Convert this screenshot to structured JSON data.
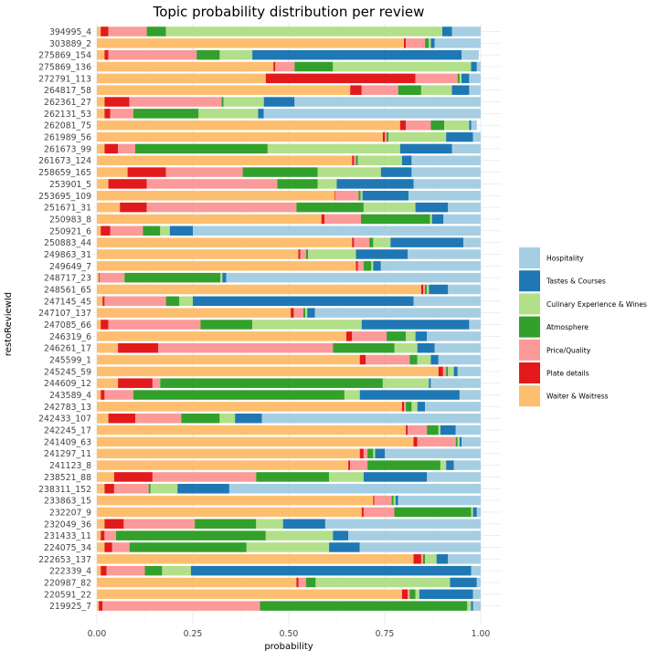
{
  "chart_data": {
    "type": "bar",
    "orientation": "horizontal",
    "stacked": true,
    "title": "Topic probability distribution per review",
    "xlabel": "probability",
    "ylabel": "restoReviewId",
    "xlim": [
      0,
      1
    ],
    "xticks": [
      0,
      0.25,
      0.5,
      0.75,
      1
    ],
    "xtick_labels": [
      "0.00",
      "0.25",
      "0.50",
      "0.75",
      "1.00"
    ],
    "grid": true,
    "legend_position": "right",
    "categories": [
      "394995_4",
      "303889_2",
      "275869_154",
      "275869_136",
      "272791_113",
      "264817_58",
      "262361_27",
      "262131_53",
      "262081_75",
      "261989_56",
      "261673_99",
      "261673_124",
      "258659_165",
      "253901_5",
      "253695_109",
      "251671_31",
      "250983_8",
      "250921_6",
      "250883_44",
      "249863_31",
      "249649_7",
      "248717_23",
      "248561_65",
      "247145_45",
      "247107_137",
      "247085_66",
      "246319_6",
      "246261_17",
      "245599_1",
      "245245_59",
      "244609_12",
      "243589_4",
      "242783_13",
      "242433_107",
      "242245_17",
      "241409_63",
      "241297_11",
      "241123_8",
      "238521_88",
      "238311_152",
      "233863_15",
      "232207_9",
      "232049_36",
      "231433_11",
      "224075_34",
      "222653_137",
      "222339_4",
      "220987_82",
      "220591_22",
      "219925_7"
    ],
    "series": [
      {
        "name": "Waiter & Waitress",
        "color": "#fdbf6f",
        "values": [
          0.01,
          0.8,
          0.02,
          0.46,
          0.44,
          0.66,
          0.02,
          0.02,
          0.79,
          0.745,
          0.02,
          0.665,
          0.08,
          0.03,
          0.62,
          0.06,
          0.585,
          0.01,
          0.665,
          0.525,
          0.675,
          0.005,
          0.845,
          0.015,
          0.505,
          0.01,
          0.65,
          0.055,
          0.685,
          0.89,
          0.055,
          0.01,
          0.795,
          0.03,
          0.805,
          0.825,
          0.685,
          0.655,
          0.045,
          0.02,
          0.72,
          0.69,
          0.02,
          0.01,
          0.02,
          0.825,
          0.01,
          0.52,
          0.795,
          0.005
        ]
      },
      {
        "name": "Plate details",
        "color": "#e31a1c",
        "values": [
          0.02,
          0.005,
          0.01,
          0.005,
          0.39,
          0.03,
          0.065,
          0.015,
          0.015,
          0.005,
          0.035,
          0.005,
          0.1,
          0.1,
          0.002,
          0.07,
          0.008,
          0.025,
          0.005,
          0.005,
          0.005,
          0.002,
          0.005,
          0.005,
          0.008,
          0.02,
          0.015,
          0.105,
          0.015,
          0.012,
          0.09,
          0.01,
          0.005,
          0.07,
          0.005,
          0.01,
          0.01,
          0.005,
          0.1,
          0.025,
          0.003,
          0.005,
          0.05,
          0.01,
          0.02,
          0.02,
          0.015,
          0.005,
          0.015,
          0.01
        ]
      },
      {
        "name": "Price/Quality",
        "color": "#fb9a99",
        "values": [
          0.1,
          0.05,
          0.23,
          0.05,
          0.11,
          0.095,
          0.24,
          0.06,
          0.065,
          0.005,
          0.045,
          0.005,
          0.2,
          0.34,
          0.06,
          0.39,
          0.095,
          0.085,
          0.04,
          0.015,
          0.015,
          0.065,
          0.005,
          0.16,
          0.025,
          0.24,
          0.09,
          0.455,
          0.115,
          0.008,
          0.02,
          0.075,
          0.005,
          0.12,
          0.05,
          0.1,
          0.01,
          0.045,
          0.27,
          0.09,
          0.045,
          0.08,
          0.185,
          0.03,
          0.045,
          0.005,
          0.1,
          0.02,
          0.005,
          0.41
        ]
      },
      {
        "name": "Atmosphere",
        "color": "#33a02c",
        "values": [
          0.05,
          0.01,
          0.06,
          0.1,
          0.005,
          0.06,
          0.005,
          0.17,
          0.035,
          0.005,
          0.345,
          0.005,
          0.195,
          0.105,
          0.005,
          0.175,
          0.18,
          0.045,
          0.01,
          0.005,
          0.02,
          0.25,
          0.005,
          0.035,
          0.005,
          0.135,
          0.05,
          0.16,
          0.02,
          0.005,
          0.58,
          0.55,
          0.015,
          0.1,
          0.03,
          0.005,
          0.015,
          0.19,
          0.19,
          0.005,
          0.005,
          0.2,
          0.16,
          0.39,
          0.305,
          0.005,
          0.045,
          0.025,
          0.015,
          0.54
        ]
      },
      {
        "name": "Culinary Experience & Wines",
        "color": "#b2df8a",
        "values": [
          0.72,
          0.005,
          0.085,
          0.36,
          0.005,
          0.08,
          0.105,
          0.155,
          0.065,
          0.15,
          0.345,
          0.115,
          0.165,
          0.05,
          0.005,
          0.135,
          0.005,
          0.025,
          0.045,
          0.125,
          0.005,
          0.005,
          0.005,
          0.035,
          0.005,
          0.285,
          0.025,
          0.06,
          0.035,
          0.015,
          0.12,
          0.04,
          0.015,
          0.04,
          0.005,
          0.005,
          0.005,
          0.015,
          0.09,
          0.07,
          0.005,
          0.005,
          0.07,
          0.175,
          0.215,
          0.03,
          0.075,
          0.35,
          0.01,
          0.01
        ]
      },
      {
        "name": "Tastes & Courses",
        "color": "#1f78b4",
        "values": [
          0.025,
          0.01,
          0.545,
          0.015,
          0.02,
          0.045,
          0.08,
          0.015,
          0.005,
          0.07,
          0.135,
          0.025,
          0.08,
          0.2,
          0.12,
          0.085,
          0.03,
          0.06,
          0.19,
          0.135,
          0.02,
          0.01,
          0.05,
          0.575,
          0.02,
          0.28,
          0.03,
          0.045,
          0.02,
          0.01,
          0.005,
          0.26,
          0.02,
          0.07,
          0.04,
          0.005,
          0.025,
          0.02,
          0.165,
          0.135,
          0.007,
          0.01,
          0.11,
          0.04,
          0.08,
          0.03,
          0.73,
          0.07,
          0.14,
          0.005
        ]
      },
      {
        "name": "Hospitality",
        "color": "#a6cee3",
        "values": [
          0.075,
          0.12,
          0.045,
          0.01,
          0.03,
          0.03,
          0.485,
          0.565,
          0.015,
          0.02,
          0.075,
          0.18,
          0.18,
          0.175,
          0.188,
          0.085,
          0.097,
          0.75,
          0.045,
          0.19,
          0.26,
          0.663,
          0.085,
          0.175,
          0.432,
          0.03,
          0.14,
          0.12,
          0.11,
          0.06,
          0.13,
          0.055,
          0.145,
          0.57,
          0.065,
          0.05,
          0.25,
          0.07,
          0.14,
          0.655,
          0.215,
          0.01,
          0.405,
          0.345,
          0.315,
          0.085,
          0.025,
          0.01,
          0.02,
          0.02
        ]
      }
    ],
    "legend_order": [
      "Hospitality",
      "Tastes & Courses",
      "Culinary Experience & Wines",
      "Atmosphere",
      "Price/Quality",
      "Plate details",
      "Waiter & Waitress"
    ]
  }
}
